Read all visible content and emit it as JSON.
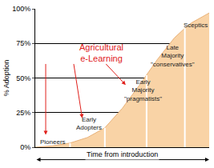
{
  "chart_data": {
    "type": "area",
    "ylabel": "% Adoption",
    "xlabel": "Time from introduction",
    "x": [
      0,
      10,
      20,
      30,
      40,
      50,
      60,
      64,
      70,
      80,
      86,
      90,
      100
    ],
    "values": [
      0,
      1,
      3,
      7,
      14,
      28,
      45,
      52,
      63,
      79,
      86,
      90,
      97
    ],
    "color": "#f9d3a6",
    "dividers": [
      20,
      40,
      64,
      86
    ],
    "labels": [
      "Pioneers",
      "Early\nAdopters",
      "Early\nMajority\n\"pragmatists\"",
      "Late\nMajority\n\"conservatives\"",
      "Sceptics"
    ],
    "highlight": "Agricultural\ne-Learning",
    "xlim": [
      0,
      100
    ],
    "xticks": [],
    "ylim": [
      0,
      100
    ],
    "yticks": [
      {
        "value": 0,
        "label": "0%"
      },
      {
        "value": 25,
        "label": "25%"
      },
      {
        "value": 50,
        "label": "50%"
      },
      {
        "value": 75,
        "label": "75%"
      },
      {
        "value": 100,
        "label": "100%"
      }
    ],
    "grid": true,
    "tick_labels": "y"
  }
}
